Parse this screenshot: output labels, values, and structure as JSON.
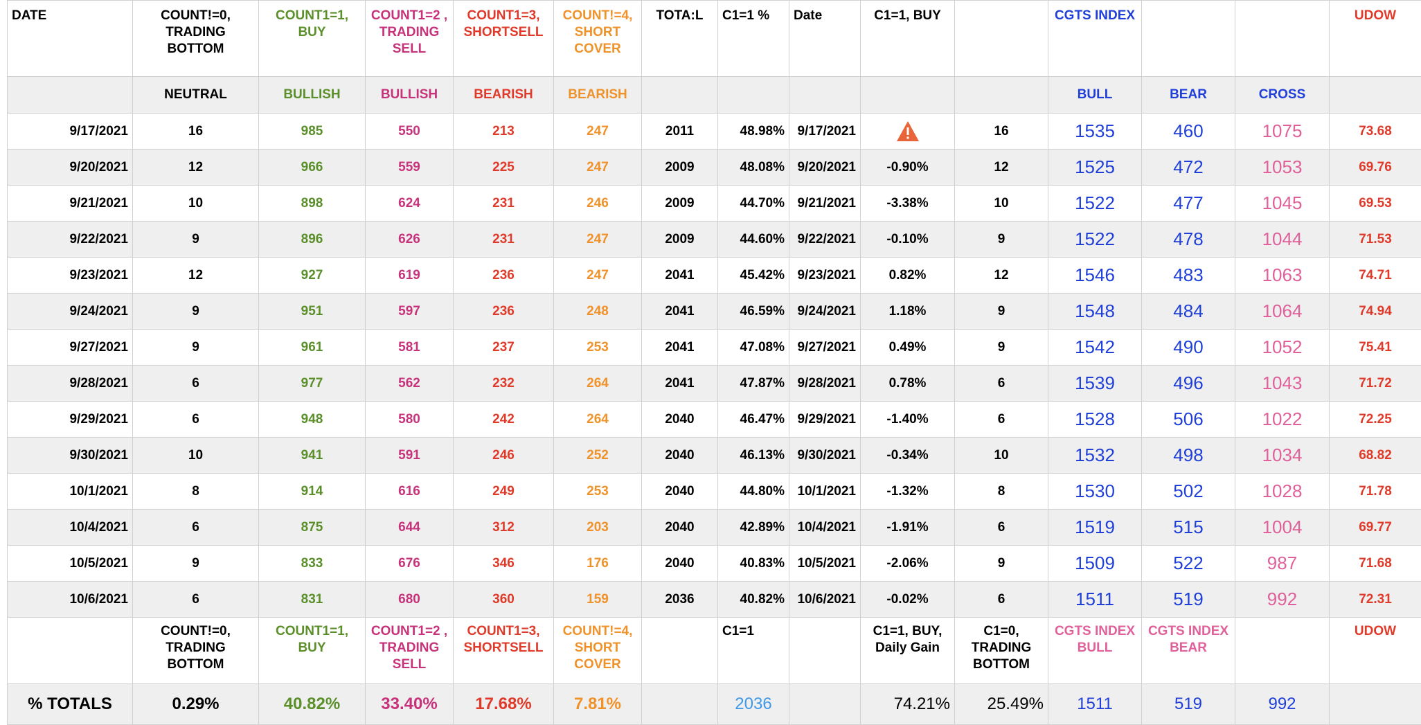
{
  "header": {
    "date": "DATE",
    "count0": "COUNT!=0, TRADING BOTTOM",
    "count1": "COUNT1=1, BUY",
    "count2": "COUNT1=2 , TRADING SELL",
    "count3": "COUNT1=3, SHORTSELL",
    "count4": "COUNT!=4, SHORT COVER",
    "total": "TOTA:L",
    "c1pct": "C1=1 %",
    "date2": "Date",
    "c1buy": "C1=1, BUY",
    "blank": "",
    "cgts": "CGTS INDEX",
    "blank2": "",
    "blank3": "",
    "udow": "UDOW"
  },
  "subheader": {
    "neutral": "NEUTRAL",
    "bullish1": "BULLISH",
    "bullish2": "BULLISH",
    "bearish1": "BEARISH",
    "bearish2": "BEARISH",
    "bull": "BULL",
    "bear": "BEAR",
    "cross": "CROSS"
  },
  "rows": [
    {
      "date": "9/17/2021",
      "c0": "16",
      "c1": "985",
      "c2": "550",
      "c3": "213",
      "c4": "247",
      "total": "2011",
      "pct": "48.98%",
      "date2": "9/17/2021",
      "buy": "",
      "c1zero": "16",
      "bull": "1535",
      "bear": "460",
      "cross": "1075",
      "udow": "73.68",
      "warn": true
    },
    {
      "date": "9/20/2021",
      "c0": "12",
      "c1": "966",
      "c2": "559",
      "c3": "225",
      "c4": "247",
      "total": "2009",
      "pct": "48.08%",
      "date2": "9/20/2021",
      "buy": "-0.90%",
      "c1zero": "12",
      "bull": "1525",
      "bear": "472",
      "cross": "1053",
      "udow": "69.76"
    },
    {
      "date": "9/21/2021",
      "c0": "10",
      "c1": "898",
      "c2": "624",
      "c3": "231",
      "c4": "246",
      "total": "2009",
      "pct": "44.70%",
      "date2": "9/21/2021",
      "buy": "-3.38%",
      "c1zero": "10",
      "bull": "1522",
      "bear": "477",
      "cross": "1045",
      "udow": "69.53"
    },
    {
      "date": "9/22/2021",
      "c0": "9",
      "c1": "896",
      "c2": "626",
      "c3": "231",
      "c4": "247",
      "total": "2009",
      "pct": "44.60%",
      "date2": "9/22/2021",
      "buy": "-0.10%",
      "c1zero": "9",
      "bull": "1522",
      "bear": "478",
      "cross": "1044",
      "udow": "71.53"
    },
    {
      "date": "9/23/2021",
      "c0": "12",
      "c1": "927",
      "c2": "619",
      "c3": "236",
      "c4": "247",
      "total": "2041",
      "pct": "45.42%",
      "date2": "9/23/2021",
      "buy": "0.82%",
      "c1zero": "12",
      "bull": "1546",
      "bear": "483",
      "cross": "1063",
      "udow": "74.71"
    },
    {
      "date": "9/24/2021",
      "c0": "9",
      "c1": "951",
      "c2": "597",
      "c3": "236",
      "c4": "248",
      "total": "2041",
      "pct": "46.59%",
      "date2": "9/24/2021",
      "buy": "1.18%",
      "c1zero": "9",
      "bull": "1548",
      "bear": "484",
      "cross": "1064",
      "udow": "74.94"
    },
    {
      "date": "9/27/2021",
      "c0": "9",
      "c1": "961",
      "c2": "581",
      "c3": "237",
      "c4": "253",
      "total": "2041",
      "pct": "47.08%",
      "date2": "9/27/2021",
      "buy": "0.49%",
      "c1zero": "9",
      "bull": "1542",
      "bear": "490",
      "cross": "1052",
      "udow": "75.41"
    },
    {
      "date": "9/28/2021",
      "c0": "6",
      "c1": "977",
      "c2": "562",
      "c3": "232",
      "c4": "264",
      "total": "2041",
      "pct": "47.87%",
      "date2": "9/28/2021",
      "buy": "0.78%",
      "c1zero": "6",
      "bull": "1539",
      "bear": "496",
      "cross": "1043",
      "udow": "71.72"
    },
    {
      "date": "9/29/2021",
      "c0": "6",
      "c1": "948",
      "c2": "580",
      "c3": "242",
      "c4": "264",
      "total": "2040",
      "pct": "46.47%",
      "date2": "9/29/2021",
      "buy": "-1.40%",
      "c1zero": "6",
      "bull": "1528",
      "bear": "506",
      "cross": "1022",
      "udow": "72.25"
    },
    {
      "date": "9/30/2021",
      "c0": "10",
      "c1": "941",
      "c2": "591",
      "c3": "246",
      "c4": "252",
      "total": "2040",
      "pct": "46.13%",
      "date2": "9/30/2021",
      "buy": "-0.34%",
      "c1zero": "10",
      "bull": "1532",
      "bear": "498",
      "cross": "1034",
      "udow": "68.82"
    },
    {
      "date": "10/1/2021",
      "c0": "8",
      "c1": "914",
      "c2": "616",
      "c3": "249",
      "c4": "253",
      "total": "2040",
      "pct": "44.80%",
      "date2": "10/1/2021",
      "buy": "-1.32%",
      "c1zero": "8",
      "bull": "1530",
      "bear": "502",
      "cross": "1028",
      "udow": "71.78"
    },
    {
      "date": "10/4/2021",
      "c0": "6",
      "c1": "875",
      "c2": "644",
      "c3": "312",
      "c4": "203",
      "total": "2040",
      "pct": "42.89%",
      "date2": "10/4/2021",
      "buy": "-1.91%",
      "c1zero": "6",
      "bull": "1519",
      "bear": "515",
      "cross": "1004",
      "udow": "69.77"
    },
    {
      "date": "10/5/2021",
      "c0": "9",
      "c1": "833",
      "c2": "676",
      "c3": "346",
      "c4": "176",
      "total": "2040",
      "pct": "40.83%",
      "date2": "10/5/2021",
      "buy": "-2.06%",
      "c1zero": "9",
      "bull": "1509",
      "bear": "522",
      "cross": "987",
      "udow": "71.68"
    },
    {
      "date": "10/6/2021",
      "c0": "6",
      "c1": "831",
      "c2": "680",
      "c3": "360",
      "c4": "159",
      "total": "2036",
      "pct": "40.82%",
      "date2": "10/6/2021",
      "buy": "-0.02%",
      "c1zero": "6",
      "bull": "1511",
      "bear": "519",
      "cross": "992",
      "udow": "72.31"
    }
  ],
  "footer_header": {
    "count0": "COUNT!=0, TRADING BOTTOM",
    "count1": "COUNT1=1, BUY",
    "count2": "COUNT1=2 , TRADING SELL",
    "count3": "COUNT1=3, SHORTSELL",
    "count4": "COUNT!=4, SHORT COVER",
    "c1": "C1=1",
    "c1buy": "C1=1, BUY, Daily Gain",
    "c1zero": "C1=0, TRADING BOTTOM",
    "cgtsbull": "CGTS INDEX BULL",
    "cgtsbear": "CGTS INDEX BEAR",
    "udow": "UDOW"
  },
  "totals": {
    "label": "% TOTALS",
    "c0": "0.29%",
    "c1": "40.82%",
    "c2": "33.40%",
    "c3": "17.68%",
    "c4": "7.81%",
    "c1val": "2036",
    "buygain": "74.21%",
    "bottom": "25.49%",
    "bull": "1511",
    "bear": "519",
    "cross": "992"
  },
  "icons": {
    "warning": "warning-triangle-icon"
  },
  "colors": {
    "green": "#5a8f2a",
    "magenta": "#c8327a",
    "red": "#e03a2a",
    "orange": "#f0922a",
    "blue": "#1f3fd8",
    "pink": "#e0609a",
    "lightblue": "#3f98e8"
  }
}
